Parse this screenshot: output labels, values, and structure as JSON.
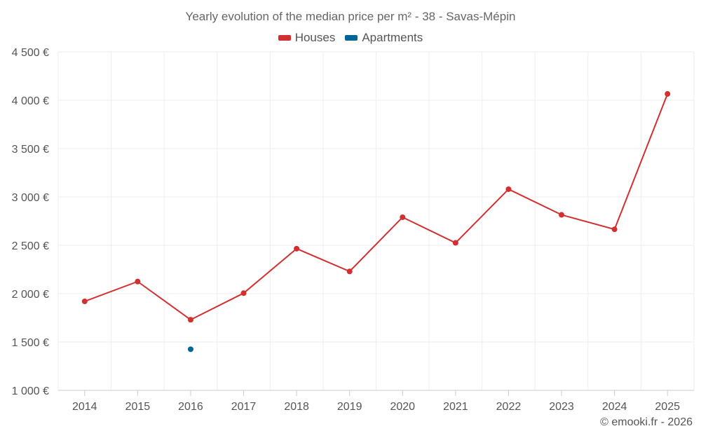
{
  "chart_data": {
    "type": "line",
    "title": "Yearly evolution of the median price per m² - 38 - Savas-Mépin",
    "categories": [
      "2014",
      "2015",
      "2016",
      "2017",
      "2018",
      "2019",
      "2020",
      "2021",
      "2022",
      "2023",
      "2024",
      "2025"
    ],
    "series": [
      {
        "name": "Houses",
        "color": "#d32f2f",
        "values": [
          1920,
          2125,
          1730,
          2005,
          2465,
          2230,
          2790,
          2525,
          3080,
          2815,
          2665,
          4065
        ]
      },
      {
        "name": "Apartments",
        "color": "#006699",
        "values": [
          null,
          null,
          1425,
          null,
          null,
          null,
          null,
          null,
          null,
          null,
          null,
          null
        ]
      }
    ],
    "ylim": [
      1000,
      4500
    ],
    "yticks": [
      1000,
      1500,
      2000,
      2500,
      3000,
      3500,
      4000,
      4500
    ],
    "ytick_labels": [
      "1 000 €",
      "1 500 €",
      "2 000 €",
      "2 500 €",
      "3 000 €",
      "3 500 €",
      "4 000 €",
      "4 500 €"
    ],
    "xlabel": "",
    "ylabel": "",
    "grid": true,
    "legend_position": "top-center"
  },
  "credit": "© emooki.fr - 2026"
}
